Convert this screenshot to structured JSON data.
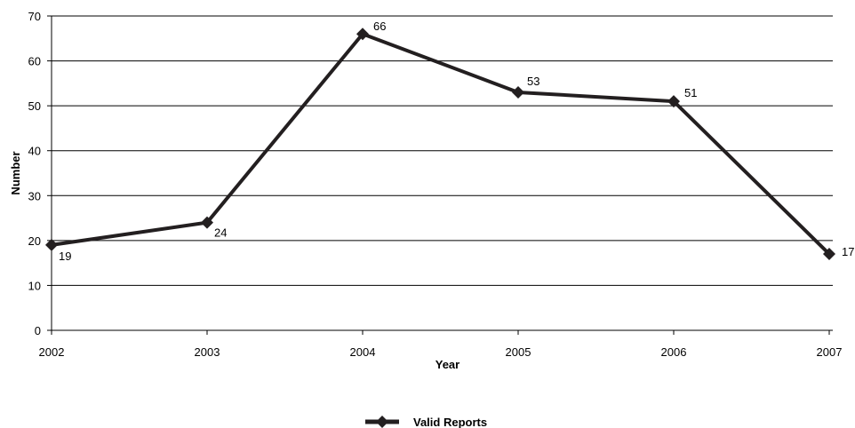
{
  "chart_data": {
    "type": "line",
    "xlabel": "Year",
    "ylabel": "Number",
    "ylim": [
      0,
      70
    ],
    "yticks": [
      0,
      10,
      20,
      30,
      40,
      50,
      60,
      70
    ],
    "categories": [
      "2002",
      "2003",
      "2004",
      "2005",
      "2006",
      "2007"
    ],
    "grid": "horizontal",
    "legend_position": "bottom",
    "series": [
      {
        "name": "Valid Reports",
        "values": [
          19,
          24,
          66,
          53,
          51,
          17
        ],
        "color": "#231f20",
        "marker": "diamond"
      }
    ]
  }
}
